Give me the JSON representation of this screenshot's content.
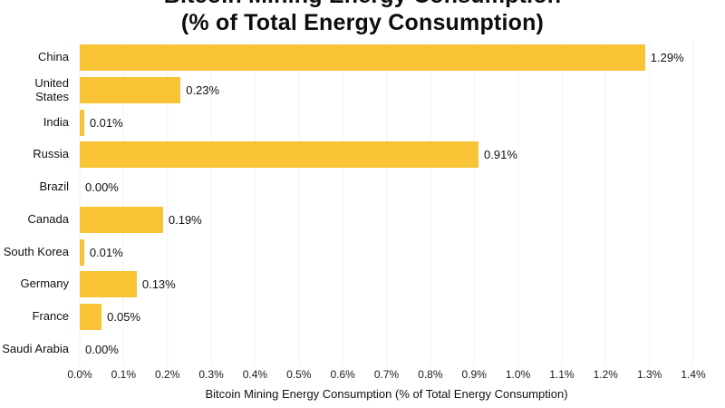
{
  "title": {
    "line1": "Bitcoin Mining Energy Consumption",
    "line2": "(% of Total Energy Consumption)"
  },
  "chart_data": {
    "type": "bar",
    "orientation": "horizontal",
    "title": "Bitcoin Mining Energy Consumption (% of Total Energy Consumption)",
    "categories": [
      "China",
      "United States",
      "India",
      "Russia",
      "Brazil",
      "Canada",
      "South Korea",
      "Germany",
      "France",
      "Saudi Arabia"
    ],
    "values": [
      1.29,
      0.23,
      0.01,
      0.91,
      0.0,
      0.19,
      0.01,
      0.13,
      0.05,
      0.0
    ],
    "value_labels": [
      "1.29%",
      "0.23%",
      "0.01%",
      "0.91%",
      "0.00%",
      "0.19%",
      "0.01%",
      "0.13%",
      "0.05%",
      "0.00%"
    ],
    "xlabel": "Bitcoin Mining Energy Consumption (% of Total Energy Consumption)",
    "xlim": [
      0,
      1.4
    ],
    "xticks": [
      "0.0%",
      "0.1%",
      "0.2%",
      "0.3%",
      "0.4%",
      "0.5%",
      "0.6%",
      "0.7%",
      "0.8%",
      "0.9%",
      "1.0%",
      "1.1%",
      "1.2%",
      "1.3%",
      "1.4%"
    ],
    "grid": true,
    "legend": false,
    "bar_color": "#F8C335",
    "gridline_color": "#F0F0F0"
  }
}
